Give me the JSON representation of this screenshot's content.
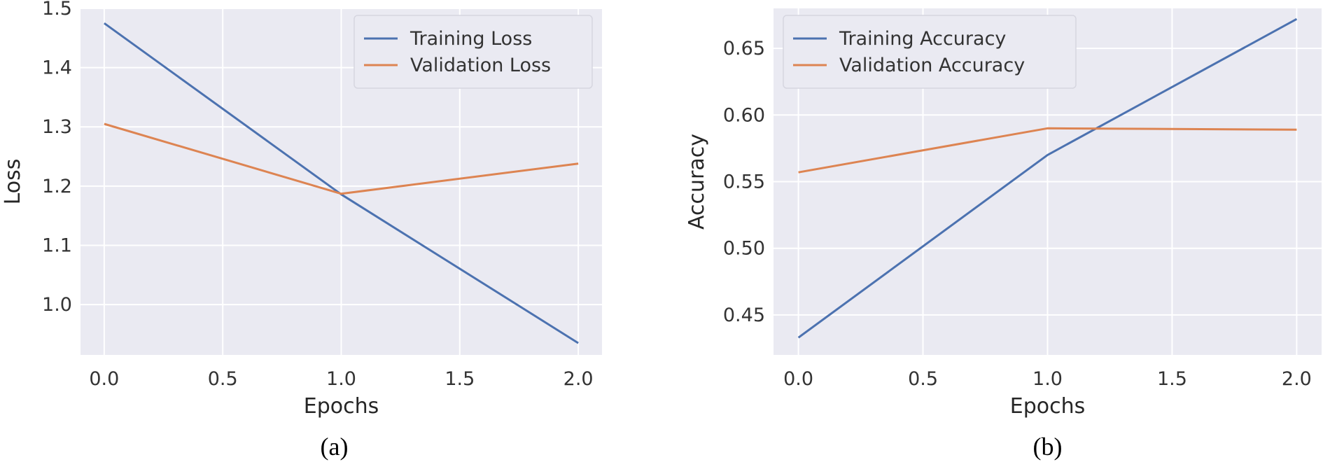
{
  "colors": {
    "plot_background": "#eaeaf2",
    "grid": "#ffffff",
    "series_blue": "#4c72b0",
    "series_orange": "#dd8452"
  },
  "chart_data": [
    {
      "type": "line",
      "caption": "(a)",
      "xlabel": "Epochs",
      "ylabel": "Loss",
      "xlim": [
        -0.1,
        2.1
      ],
      "ylim": [
        0.915,
        1.5
      ],
      "xticks": [
        0.0,
        0.5,
        1.0,
        1.5,
        2.0
      ],
      "xtick_labels": [
        "0.0",
        "0.5",
        "1.0",
        "1.5",
        "2.0"
      ],
      "yticks": [
        1.0,
        1.1,
        1.2,
        1.3,
        1.4,
        1.5
      ],
      "ytick_labels": [
        "1.0",
        "1.1",
        "1.2",
        "1.3",
        "1.4",
        "1.5"
      ],
      "grid": true,
      "legend_position": "top-right",
      "x": [
        0,
        1,
        2
      ],
      "series": [
        {
          "name": "Training Loss",
          "values": [
            1.475,
            1.186,
            0.935
          ]
        },
        {
          "name": "Validation Loss",
          "values": [
            1.305,
            1.187,
            1.238
          ]
        }
      ]
    },
    {
      "type": "line",
      "caption": "(b)",
      "xlabel": "Epochs",
      "ylabel": "Accuracy",
      "xlim": [
        -0.1,
        2.1
      ],
      "ylim": [
        0.42,
        0.68
      ],
      "xticks": [
        0.0,
        0.5,
        1.0,
        1.5,
        2.0
      ],
      "xtick_labels": [
        "0.0",
        "0.5",
        "1.0",
        "1.5",
        "2.0"
      ],
      "yticks": [
        0.45,
        0.5,
        0.55,
        0.6,
        0.65
      ],
      "ytick_labels": [
        "0.45",
        "0.50",
        "0.55",
        "0.60",
        "0.65"
      ],
      "grid": true,
      "legend_position": "top-left",
      "x": [
        0,
        1,
        2
      ],
      "series": [
        {
          "name": "Training Accuracy",
          "values": [
            0.433,
            0.57,
            0.672
          ]
        },
        {
          "name": "Validation Accuracy",
          "values": [
            0.557,
            0.59,
            0.589
          ]
        }
      ]
    }
  ]
}
